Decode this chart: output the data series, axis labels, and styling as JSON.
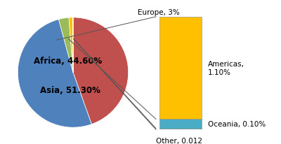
{
  "pie_labels": [
    "Africa",
    "Asia",
    "Europe",
    "Americas",
    "Oceania",
    "Other"
  ],
  "pie_values": [
    44.6,
    51.3,
    3.0,
    1.1,
    0.1,
    0.012
  ],
  "pie_colors": [
    "#c0504d",
    "#4f81bd",
    "#9bbb59",
    "#ffc000",
    "#4bacc6",
    "#f79646"
  ],
  "bar_values": [
    1.1,
    0.1,
    0.012
  ],
  "bar_colors": [
    "#ffc000",
    "#4bacc6",
    "#f79646"
  ],
  "pie_africa_label": "Africa, 44.60%",
  "pie_asia_label": "Asia, 51.30%",
  "europe_label": "Europe, 3%",
  "americas_label": "Americas,\n1.10%",
  "oceania_label": "Oceania, 0.10%",
  "other_label": "Other, 0.012",
  "background_color": "#ffffff",
  "label_fontsize": 8.5
}
